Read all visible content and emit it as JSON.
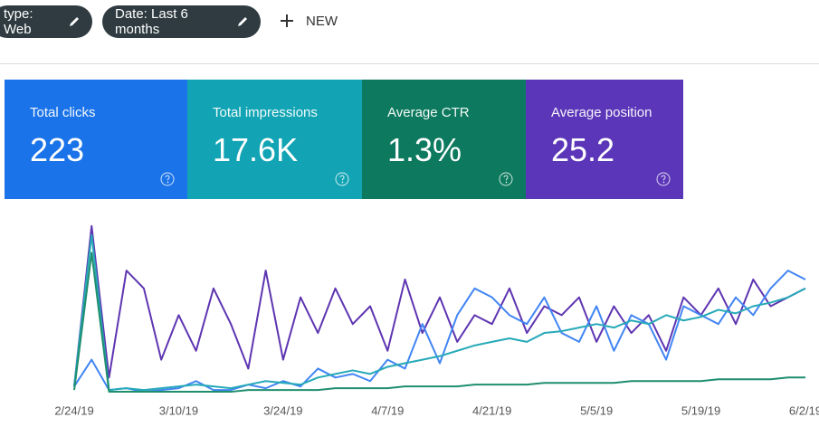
{
  "filters": [
    "type: Web",
    "Date: Last 6 months"
  ],
  "new_button": "NEW",
  "metrics": [
    {
      "label": "Total clicks",
      "value": "223",
      "color": "#1a73e8"
    },
    {
      "label": "Total impressions",
      "value": "17.6K",
      "color": "#12a4b4"
    },
    {
      "label": "Average CTR",
      "value": "1.3%",
      "color": "#0d7a5f"
    },
    {
      "label": "Average position",
      "value": "25.2",
      "color": "#5b36b8"
    }
  ],
  "chart_data": {
    "type": "line",
    "categories": [
      "2/24/19",
      null,
      null,
      null,
      null,
      null,
      "3/10/19",
      null,
      null,
      null,
      null,
      null,
      "3/24/19",
      null,
      null,
      null,
      null,
      null,
      "4/7/19",
      null,
      null,
      null,
      null,
      null,
      "4/21/19",
      null,
      null,
      null,
      null,
      null,
      "5/5/19",
      null,
      null,
      null,
      null,
      null,
      "5/19/19",
      null,
      null,
      null,
      null,
      null,
      "6/2/19"
    ],
    "ylim": [
      0,
      100
    ],
    "series": [
      {
        "color": "#5e35b1",
        "values": [
          5,
          95,
          10,
          70,
          60,
          20,
          45,
          25,
          60,
          40,
          15,
          70,
          20,
          55,
          35,
          60,
          40,
          50,
          25,
          65,
          35,
          55,
          30,
          45,
          40,
          60,
          35,
          50,
          45,
          55,
          30,
          50,
          35,
          45,
          25,
          55,
          45,
          60,
          40,
          65,
          50,
          55,
          60
        ]
      },
      {
        "color": "#4285f4",
        "values": [
          5,
          20,
          3,
          4,
          2,
          3,
          4,
          8,
          3,
          3,
          6,
          4,
          8,
          5,
          15,
          10,
          12,
          8,
          20,
          15,
          40,
          18,
          45,
          60,
          55,
          45,
          40,
          55,
          35,
          30,
          50,
          25,
          45,
          40,
          20,
          50,
          45,
          40,
          55,
          45,
          60,
          70,
          65
        ]
      },
      {
        "color": "#26a9b8",
        "values": [
          5,
          90,
          3,
          4,
          3,
          4,
          5,
          6,
          5,
          4,
          6,
          8,
          7,
          6,
          10,
          12,
          14,
          12,
          16,
          18,
          20,
          22,
          25,
          28,
          30,
          32,
          30,
          35,
          36,
          38,
          40,
          38,
          42,
          40,
          45,
          42,
          44,
          48,
          46,
          50,
          52,
          55,
          60
        ]
      },
      {
        "color": "#1e8e6e",
        "values": [
          3,
          80,
          2,
          2,
          2,
          2,
          2,
          2,
          2,
          2,
          3,
          3,
          3,
          3,
          3,
          4,
          4,
          4,
          4,
          5,
          5,
          5,
          5,
          6,
          6,
          6,
          6,
          7,
          7,
          7,
          7,
          7,
          8,
          8,
          8,
          8,
          8,
          9,
          9,
          9,
          9,
          10,
          10
        ]
      }
    ]
  }
}
